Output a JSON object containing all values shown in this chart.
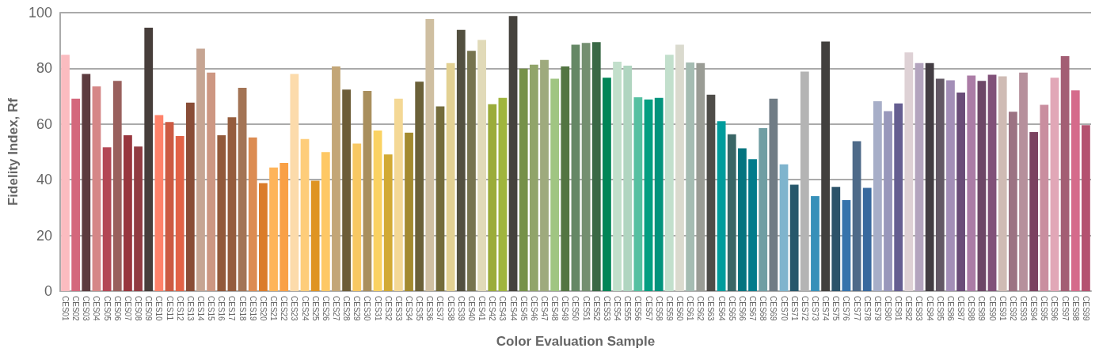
{
  "chart_data": {
    "type": "bar",
    "xlabel": "Color Evaluation Sample",
    "ylabel": "Fidelity Index, Rf",
    "categories": [
      "CES01",
      "CES02",
      "CES03",
      "CES04",
      "CES05",
      "CES06",
      "CES07",
      "CES08",
      "CES09",
      "CES10",
      "CES11",
      "CES12",
      "CES13",
      "CES14",
      "CES15",
      "CES16",
      "CES17",
      "CES18",
      "CES19",
      "CES20",
      "CES21",
      "CES22",
      "CES23",
      "CES24",
      "CES25",
      "CES26",
      "CES27",
      "CES28",
      "CES29",
      "CES30",
      "CES31",
      "CES32",
      "CES33",
      "CES34",
      "CES35",
      "CES36",
      "CES37",
      "CES38",
      "CES39",
      "CES40",
      "CES41",
      "CES42",
      "CES43",
      "CES44",
      "CES45",
      "CES46",
      "CES47",
      "CES48",
      "CES49",
      "CES50",
      "CES51",
      "CES52",
      "CES53",
      "CES54",
      "CES55",
      "CES56",
      "CES57",
      "CES58",
      "CES59",
      "CES60",
      "CES61",
      "CES62",
      "CES63",
      "CES64",
      "CES65",
      "CES66",
      "CES67",
      "CES68",
      "CES69",
      "CES70",
      "CES71",
      "CES72",
      "CES73",
      "CES74",
      "CES75",
      "CES76",
      "CES77",
      "CES78",
      "CES79",
      "CES80",
      "CES81",
      "CES82",
      "CES83",
      "CES84",
      "CES85",
      "CES86",
      "CES87",
      "CES88",
      "CES89",
      "CES90",
      "CES91",
      "CES92",
      "CES93",
      "CES94",
      "CES95",
      "CES96",
      "CES97",
      "CES98",
      "CES99"
    ],
    "values": [
      84.9,
      69.1,
      78.0,
      73.5,
      51.6,
      75.5,
      56.0,
      51.9,
      94.6,
      63.2,
      60.7,
      55.7,
      67.7,
      87.1,
      78.5,
      56.0,
      62.4,
      73.0,
      55.2,
      38.8,
      44.4,
      46.0,
      78.0,
      54.6,
      39.6,
      49.9,
      80.7,
      72.4,
      53.0,
      71.9,
      57.7,
      49.1,
      69.1,
      56.9,
      75.2,
      97.7,
      66.3,
      81.9,
      93.8,
      86.3,
      90.2,
      67.1,
      69.4,
      98.8,
      79.9,
      81.3,
      83.0,
      76.3,
      80.7,
      88.5,
      89.1,
      89.4,
      76.6,
      82.4,
      81.0,
      69.6,
      68.8,
      69.4,
      84.9,
      88.5,
      82.1,
      81.9,
      70.5,
      61.0,
      56.3,
      51.3,
      47.4,
      58.5,
      69.1,
      45.5,
      38.2,
      78.8,
      34.1,
      89.6,
      37.4,
      32.7,
      53.8,
      37.1,
      68.2,
      64.6,
      67.4,
      85.7,
      81.9,
      81.9,
      76.3,
      75.7,
      71.3,
      77.4,
      75.5,
      77.7,
      77.1,
      64.4,
      78.5,
      57.1,
      66.9,
      76.6,
      84.4,
      72.1,
      59.6
    ],
    "colors": [
      "#fbbcc0",
      "#d4677c",
      "#5c3b3f",
      "#d58787",
      "#b34755",
      "#99605d",
      "#98363e",
      "#913c42",
      "#473e3b",
      "#ff826a",
      "#cc5a42",
      "#e26246",
      "#894d37",
      "#c6a593",
      "#cd9782",
      "#92593a",
      "#955c3d",
      "#a37455",
      "#dc8c52",
      "#db7c2a",
      "#feb45a",
      "#f9a046",
      "#fcdbab",
      "#fecd7a",
      "#df9422",
      "#fec865",
      "#c3a677",
      "#6d5d38",
      "#f8c862",
      "#a98f5d",
      "#fad262",
      "#d2aa34",
      "#f4d895",
      "#a38a2f",
      "#6b6139",
      "#cfbfa1",
      "#746c3c",
      "#e3d193",
      "#535040",
      "#77744f",
      "#e1dab8",
      "#9bac3a",
      "#a0b53d",
      "#45423d",
      "#769149",
      "#91a46a",
      "#9eaa7d",
      "#a0c582",
      "#537542",
      "#668866",
      "#748f70",
      "#3a6946",
      "#018557",
      "#c2dfcb",
      "#b0d5c0",
      "#56c0a1",
      "#039e81",
      "#02937c",
      "#c2dfcc",
      "#dadace",
      "#a5bcb2",
      "#9a9c95",
      "#4e4c48",
      "#009c9c",
      "#3a6666",
      "#04747f",
      "#017b8b",
      "#709ea3",
      "#707c85",
      "#7fb4cd",
      "#27576b",
      "#b4b4b4",
      "#3790b9",
      "#42403e",
      "#2c536a",
      "#3673ac",
      "#4e6a89",
      "#38699e",
      "#a7aec8",
      "#9897bb",
      "#655e91",
      "#ded1d5",
      "#b3a4be",
      "#433d43",
      "#635865",
      "#a38eb7",
      "#6a4c78",
      "#ab7ca6",
      "#6d4767",
      "#815179",
      "#cfbbb4",
      "#9c7383",
      "#b6909c",
      "#7b4260",
      "#c98e9f",
      "#e1a7b7",
      "#a35e74",
      "#d56b8b",
      "#b45270"
    ],
    "ylim": [
      0,
      100
    ],
    "yticks": [
      0,
      20,
      40,
      60,
      80,
      100
    ],
    "grid": "y"
  }
}
